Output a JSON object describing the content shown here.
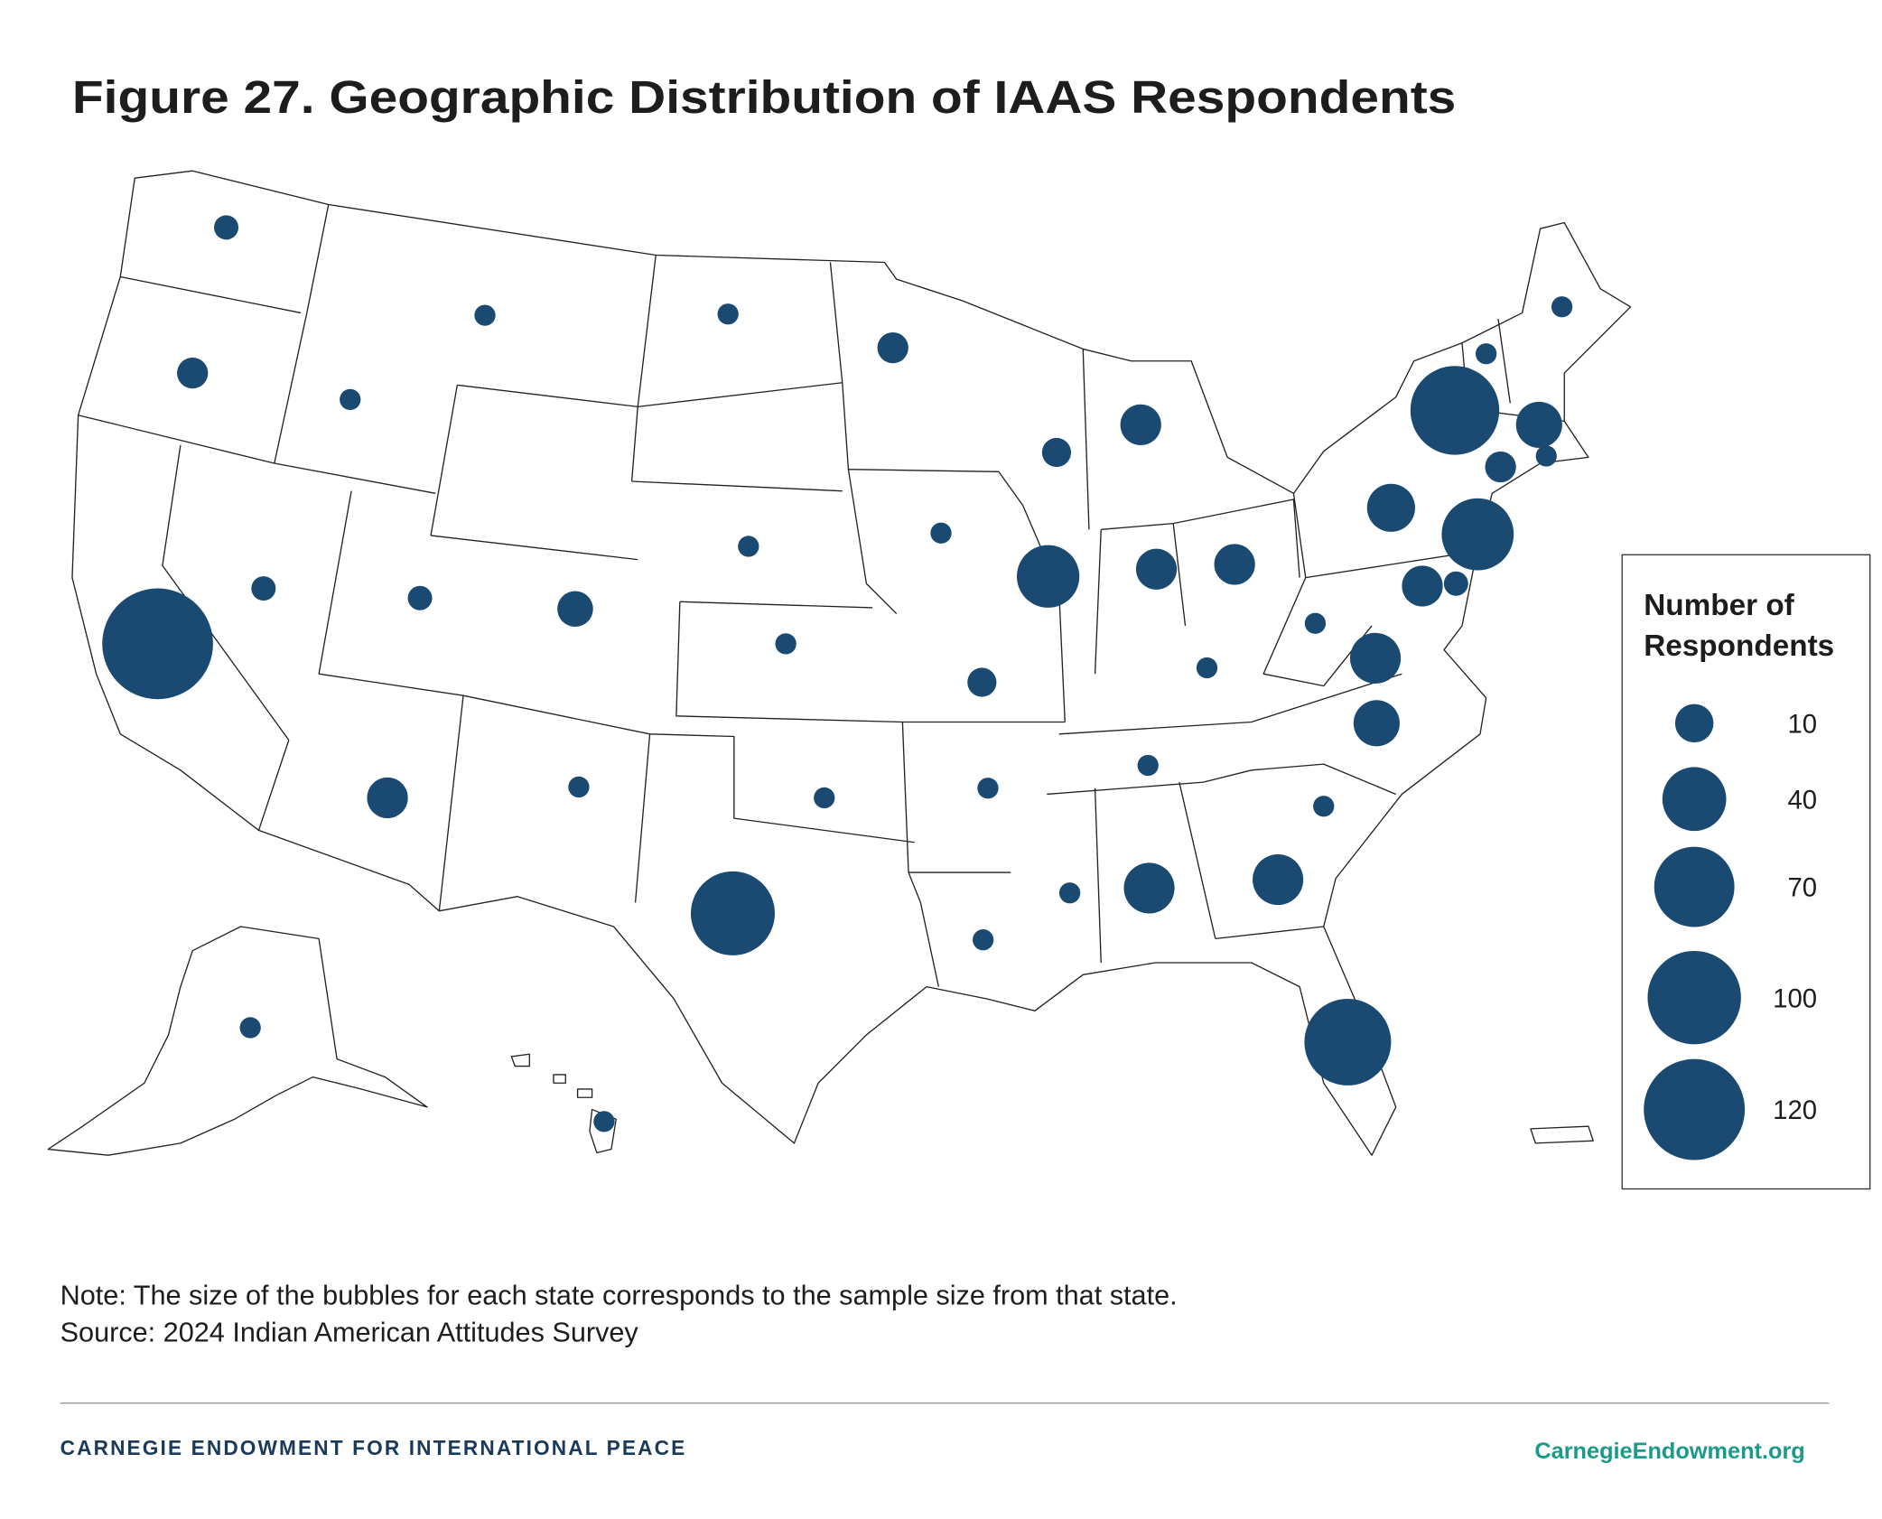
{
  "chart_data": {
    "type": "bubble-map",
    "title": "Figure 27. Geographic Distribution of IAAS Respondents",
    "values": [
      2,
      5,
      1,
      1,
      1,
      5,
      4,
      12,
      2,
      2,
      8,
      1,
      1,
      38,
      12,
      12,
      19,
      89,
      17,
      5,
      1,
      1,
      1,
      54,
      12,
      2,
      22,
      1,
      1,
      17,
      1,
      1,
      22,
      22,
      1,
      1,
      1,
      4,
      1,
      1,
      1,
      12,
      78,
      148,
      84,
      1,
      1
    ],
    "color": "#1a4a72",
    "legend_title": "Number of Respondents",
    "size_legend": [
      10,
      40,
      70,
      100,
      120
    ],
    "note": "Note: The size of the bubbles for each state corresponds to the sample size from that state.",
    "source": "Source: 2024 Indian American Attitudes Survey"
  },
  "footer": {
    "org": "CARNEGIE ENDOWMENT FOR INTERNATIONAL PEACE",
    "url": "CarnegieEndowment.org"
  }
}
